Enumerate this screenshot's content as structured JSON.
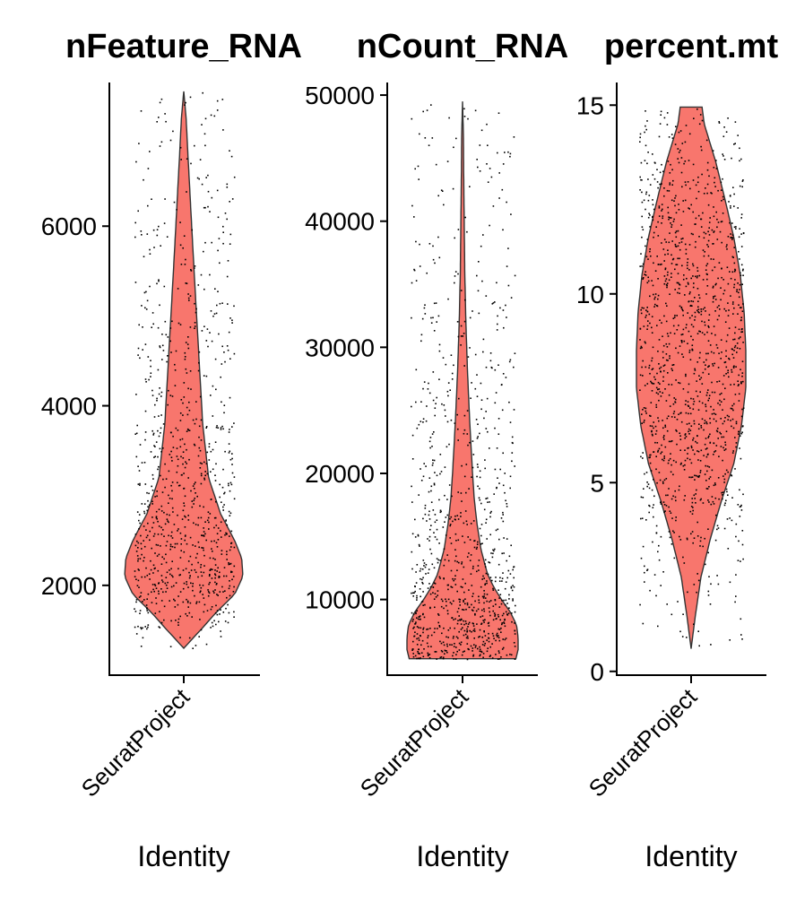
{
  "chart_data": [
    {
      "type": "violin",
      "title": "nFeature_RNA",
      "xlabel": "Identity",
      "ylabel": "",
      "category": "SeuratProject",
      "ylim": [
        1000,
        7600
      ],
      "yticks": [
        2000,
        4000,
        6000
      ],
      "ytick_labels": [
        "2000",
        "4000",
        "6000"
      ],
      "min": 1300,
      "max": 7500,
      "density_profile": [
        [
          1300,
          0.0
        ],
        [
          1500,
          0.28
        ],
        [
          1700,
          0.55
        ],
        [
          1900,
          0.86
        ],
        [
          2100,
          1.0
        ],
        [
          2300,
          0.98
        ],
        [
          2500,
          0.86
        ],
        [
          2800,
          0.62
        ],
        [
          3200,
          0.42
        ],
        [
          3800,
          0.32
        ],
        [
          4500,
          0.26
        ],
        [
          5200,
          0.2
        ],
        [
          5800,
          0.15
        ],
        [
          6300,
          0.11
        ],
        [
          6800,
          0.07
        ],
        [
          7200,
          0.04
        ],
        [
          7500,
          0.0
        ]
      ],
      "fill_color": "#F8766D",
      "point_color": "#000000"
    },
    {
      "type": "violin",
      "title": "nCount_RNA",
      "xlabel": "Identity",
      "ylabel": "",
      "category": "SeuratProject",
      "ylim": [
        4000,
        51000
      ],
      "yticks": [
        10000,
        20000,
        30000,
        40000,
        50000
      ],
      "ytick_labels": [
        "10000",
        "20000",
        "30000",
        "40000",
        "50000"
      ],
      "min": 5300,
      "max": 49500,
      "density_profile": [
        [
          5300,
          0.96
        ],
        [
          6000,
          1.0
        ],
        [
          7000,
          1.0
        ],
        [
          8000,
          0.97
        ],
        [
          9000,
          0.86
        ],
        [
          10000,
          0.7
        ],
        [
          11000,
          0.56
        ],
        [
          12000,
          0.45
        ],
        [
          14000,
          0.33
        ],
        [
          16000,
          0.26
        ],
        [
          18000,
          0.21
        ],
        [
          20000,
          0.18
        ],
        [
          24000,
          0.13
        ],
        [
          28000,
          0.09
        ],
        [
          32000,
          0.06
        ],
        [
          36000,
          0.04
        ],
        [
          40000,
          0.03
        ],
        [
          44000,
          0.02
        ],
        [
          47000,
          0.015
        ],
        [
          49500,
          0.0
        ]
      ],
      "fill_color": "#F8766D",
      "point_color": "#000000"
    },
    {
      "type": "violin",
      "title": "percent.mt",
      "xlabel": "Identity",
      "ylabel": "",
      "category": "SeuratProject",
      "ylim": [
        -0.1,
        15.6
      ],
      "yticks": [
        0,
        5,
        10,
        15
      ],
      "ytick_labels": [
        "0",
        "5",
        "10",
        "15"
      ],
      "min": 0.6,
      "max": 14.95,
      "density_profile": [
        [
          0.6,
          0.0
        ],
        [
          1.5,
          0.08
        ],
        [
          2.5,
          0.18
        ],
        [
          3.5,
          0.35
        ],
        [
          4.5,
          0.55
        ],
        [
          5.5,
          0.78
        ],
        [
          6.5,
          0.92
        ],
        [
          7.5,
          1.0
        ],
        [
          8.5,
          1.0
        ],
        [
          9.5,
          0.97
        ],
        [
          10.5,
          0.9
        ],
        [
          11.5,
          0.78
        ],
        [
          12.5,
          0.62
        ],
        [
          13.5,
          0.45
        ],
        [
          14.5,
          0.24
        ],
        [
          14.95,
          0.2
        ]
      ],
      "fill_color": "#F8766D",
      "point_color": "#000000"
    }
  ]
}
